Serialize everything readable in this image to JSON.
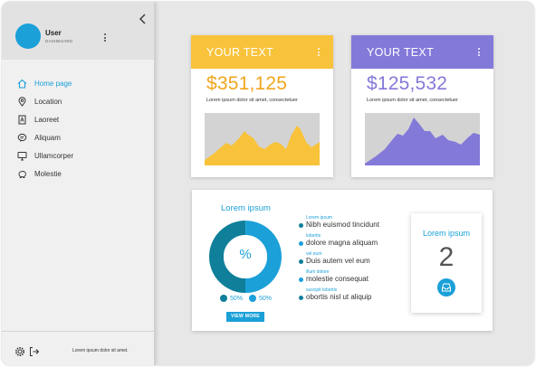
{
  "sidebar": {
    "user_name": "User",
    "user_role": "DASHBOARD",
    "nav": [
      {
        "label": "Home page",
        "icon": "home-icon",
        "active": true
      },
      {
        "label": "Location",
        "icon": "location-pin-icon"
      },
      {
        "label": "Laoreet",
        "icon": "document-icon"
      },
      {
        "label": "Aliquam",
        "icon": "chat-icon"
      },
      {
        "label": "Ullamcorper",
        "icon": "monitor-icon"
      },
      {
        "label": "Molestie",
        "icon": "piggy-bank-icon"
      }
    ],
    "footer_text": "Lorem ipsum dolor sit amet."
  },
  "cards": [
    {
      "title": "YOUR TEXT",
      "value": "$351,125",
      "desc": "Lorem ipsum dolor sit amet, consectetuer",
      "color": "#f8c33a",
      "value_color": "#f0a61e"
    },
    {
      "title": "YOUR TEXT",
      "value": "$125,532",
      "desc": "Lorem ipsum dolor sit amet, consectetuer",
      "color": "#8379d9",
      "value_color": "#8379d9"
    }
  ],
  "panel": {
    "title": "Lorem ipsum",
    "donut_label": "%",
    "legend": [
      {
        "label": "50%",
        "color": "#0f7f9a"
      },
      {
        "label": "50%",
        "color": "#1ba0d8"
      }
    ],
    "view_more": "VIEW MORE",
    "items": [
      {
        "category": "Lorem ipsum",
        "text": "Nibh euismod tincidunt",
        "color": "#0f7f9a"
      },
      {
        "category": "lobortis",
        "text": "dolore magna aliquam",
        "color": "#1ba0d8"
      },
      {
        "category": "vel eum",
        "text": "Duis autem vel eum",
        "color": "#0f7f9a"
      },
      {
        "category": "illum dolore",
        "text": "molestie consequat",
        "color": "#1ba0d8"
      },
      {
        "category": "suscipit lobortis",
        "text": "obortis nisl ut aliquip",
        "color": "#0f7f9a"
      }
    ],
    "stat": {
      "title": "Lorem ipsum",
      "value": "2"
    }
  },
  "colors": {
    "accent": "#1ba0d8",
    "accent_dark": "#0f7f9a"
  }
}
